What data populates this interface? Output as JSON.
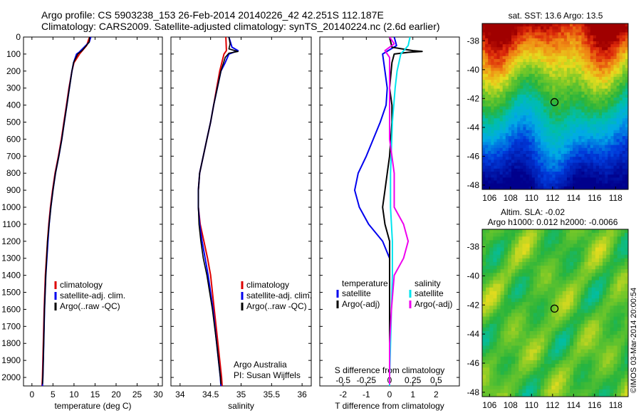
{
  "title_line1": "Argo profile: CS 5903238_153 26-Feb-2014 20140226_42 42.251S 112.187E",
  "title_line2": "Climatology: CARS2009. Satellite-adjusted climatology: synTS_20140224.nc (2.6d earlier)",
  "colors": {
    "climatology": "#dd0000",
    "satellite": "#0000ee",
    "argo": "#000000",
    "satellite_salinity": "#00e5ee",
    "argo_salinity": "#ee00ee"
  },
  "chart_data": [
    {
      "type": "line",
      "xlabel": "temperature (deg C)",
      "xlim": [
        -2,
        31
      ],
      "xticks": [
        "0",
        "5",
        "10",
        "15",
        "20",
        "25",
        "30"
      ],
      "xtick_values": [
        0,
        5,
        10,
        15,
        20,
        25,
        30
      ],
      "ylim": [
        0,
        2050
      ],
      "yticks": [
        "0",
        "100",
        "200",
        "300",
        "400",
        "500",
        "600",
        "700",
        "800",
        "900",
        "1000",
        "1100",
        "1200",
        "1300",
        "1400",
        "1500",
        "1600",
        "1700",
        "1800",
        "1900",
        "2000"
      ],
      "ytick_values": [
        0,
        100,
        200,
        300,
        400,
        500,
        600,
        700,
        800,
        900,
        1000,
        1100,
        1200,
        1300,
        1400,
        1500,
        1600,
        1700,
        1800,
        1900,
        2000
      ],
      "y_reversed": true,
      "legend": [
        "climatology",
        "satellite-adj. clim.",
        "Argo(..raw -QC)"
      ],
      "series": [
        {
          "name": "climatology",
          "depth": [
            0,
            50,
            100,
            150,
            200,
            300,
            400,
            500,
            600,
            700,
            800,
            900,
            1000,
            1100,
            1200,
            1400,
            1600,
            1800,
            2000,
            2050
          ],
          "values": [
            13.7,
            13.0,
            11.3,
            10.0,
            9.5,
            8.8,
            8.2,
            7.6,
            7.0,
            6.3,
            5.5,
            4.9,
            4.4,
            4.0,
            3.7,
            3.2,
            2.9,
            2.7,
            2.5,
            2.4
          ]
        },
        {
          "name": "satellite-adj. clim.",
          "depth": [
            0,
            30,
            60,
            90,
            100,
            150,
            200,
            300,
            400,
            500,
            600,
            700,
            800,
            900,
            1000,
            1100,
            1200,
            1400,
            1600,
            1800,
            2000,
            2050
          ],
          "values": [
            14.0,
            13.6,
            12.4,
            11.2,
            10.6,
            9.9,
            9.5,
            8.9,
            8.3,
            7.7,
            7.1,
            6.4,
            5.6,
            5.0,
            4.5,
            4.1,
            3.8,
            3.3,
            3.0,
            2.8,
            2.6,
            2.5
          ]
        },
        {
          "name": "Argo(..raw -QC)",
          "depth": [
            0,
            30,
            60,
            80,
            100,
            150,
            200,
            300,
            400,
            500,
            600,
            700,
            800,
            900,
            1000,
            1100,
            1200,
            1400,
            1600,
            1800,
            2000,
            2040
          ],
          "values": [
            13.7,
            13.6,
            12.6,
            11.9,
            10.9,
            9.9,
            9.5,
            8.9,
            8.3,
            7.7,
            7.1,
            6.4,
            5.6,
            5.0,
            4.5,
            4.1,
            3.7,
            3.3,
            3.0,
            2.8,
            2.6,
            2.5
          ]
        }
      ]
    },
    {
      "type": "line",
      "xlabel": "salinity",
      "xlim": [
        33.85,
        36.15
      ],
      "xticks": [
        "34",
        "34.5",
        "35",
        "35.5",
        "36"
      ],
      "xtick_values": [
        34,
        34.5,
        35,
        35.5,
        36
      ],
      "ylim": [
        0,
        2050
      ],
      "y_reversed": true,
      "legend": [
        "climatology",
        "satellite-adj. clim.",
        "Argo(..raw -QC)"
      ],
      "annotations": [
        "Argo Australia",
        "PI: Susan Wijffels"
      ],
      "series": [
        {
          "name": "climatology",
          "depth": [
            0,
            80,
            100,
            200,
            300,
            400,
            500,
            600,
            700,
            800,
            900,
            1000,
            1100,
            1200,
            1300,
            1400,
            1600,
            1800,
            2000,
            2050
          ],
          "values": [
            34.75,
            34.76,
            34.72,
            34.65,
            34.6,
            34.55,
            34.5,
            34.44,
            34.38,
            34.32,
            34.3,
            34.3,
            34.33,
            34.39,
            34.45,
            34.5,
            34.56,
            34.62,
            34.68,
            34.69
          ]
        },
        {
          "name": "satellite-adj. clim.",
          "depth": [
            0,
            60,
            80,
            100,
            150,
            200,
            300,
            400,
            500,
            600,
            700,
            800,
            900,
            1000,
            1100,
            1200,
            1300,
            1400,
            1600,
            1800,
            2000,
            2050
          ],
          "values": [
            34.8,
            34.85,
            34.95,
            34.8,
            34.74,
            34.67,
            34.61,
            34.55,
            34.5,
            34.44,
            34.38,
            34.32,
            34.3,
            34.3,
            34.32,
            34.36,
            34.41,
            34.46,
            34.54,
            34.6,
            34.66,
            34.67
          ]
        },
        {
          "name": "Argo(..raw -QC)",
          "depth": [
            0,
            40,
            70,
            85,
            95,
            120,
            200,
            300,
            400,
            500,
            600,
            700,
            800,
            900,
            1000,
            1100,
            1200,
            1300,
            1400,
            1600,
            1800,
            2000,
            2040
          ],
          "values": [
            34.8,
            34.82,
            34.8,
            34.95,
            34.8,
            34.74,
            34.67,
            34.61,
            34.55,
            34.5,
            34.44,
            34.38,
            34.32,
            34.3,
            34.3,
            34.31,
            34.34,
            34.38,
            34.44,
            34.53,
            34.6,
            34.66,
            34.67
          ]
        }
      ]
    },
    {
      "type": "line",
      "xlabel": "T difference from climatology",
      "xlabel_top": "S difference from climatology",
      "xlim": [
        -3,
        3
      ],
      "xticks": [
        "-2",
        "-1",
        "0",
        "1",
        "2"
      ],
      "xtick_values": [
        -2,
        -1,
        0,
        1,
        2
      ],
      "xticks_top": [
        "-0.5",
        "-0.25",
        "0",
        "0.25",
        "0.5"
      ],
      "xticks_top_values": [
        -0.5,
        -0.25,
        0,
        0.25,
        0.5
      ],
      "ylim": [
        0,
        2050
      ],
      "y_reversed": true,
      "legend_temperature": {
        "title": "temperature",
        "entries": [
          "satellite",
          "Argo(-adj)"
        ]
      },
      "legend_salinity": {
        "title": "salinity",
        "entries": [
          "satellite",
          "Argo(-adj)"
        ]
      },
      "series": [
        {
          "name": "satellite",
          "depth": [
            0,
            50,
            100,
            200,
            300,
            400,
            500,
            600,
            700,
            800,
            900,
            1000,
            1100,
            1200,
            1300,
            1400,
            1600,
            1800,
            2000,
            2050
          ],
          "values": [
            0.2,
            0.3,
            -0.3,
            -0.2,
            -0.1,
            -0.15,
            -0.4,
            -0.7,
            -1.0,
            -1.35,
            -1.5,
            -1.3,
            -0.9,
            -0.3,
            0.0,
            0.0,
            0.0,
            0.0,
            0.0,
            0.0
          ]
        },
        {
          "name": "Argo(-adj)",
          "depth": [
            0,
            60,
            80,
            85,
            90,
            100,
            150,
            300,
            400,
            500,
            700,
            800,
            900,
            1000,
            1100,
            1200,
            1300,
            1400,
            1600,
            1800,
            2000,
            2040
          ],
          "values": [
            0.0,
            0.1,
            1.0,
            1.4,
            0.8,
            0.2,
            0.1,
            0.0,
            0.1,
            0.1,
            0.0,
            -0.1,
            -0.2,
            -0.3,
            -0.2,
            0.0,
            0.0,
            0.0,
            0.0,
            0.0,
            0.0,
            0.0
          ]
        },
        {
          "name": "satellite",
          "depth": [
            0,
            50,
            100,
            150,
            200,
            300,
            500,
            800,
            1000,
            1200,
            1400,
            1600,
            1800,
            2000,
            2050
          ],
          "values": [
            0.22,
            0.2,
            0.12,
            0.1,
            0.08,
            0.06,
            0.03,
            0.01,
            0.01,
            0.03,
            0.03,
            0.02,
            0.01,
            0.0,
            0.0
          ]
        },
        {
          "name": "Argo(-adj)",
          "depth": [
            0,
            40,
            80,
            120,
            200,
            400,
            600,
            800,
            1000,
            1100,
            1200,
            1300,
            1400,
            1600,
            1800,
            2000,
            2040
          ],
          "values": [
            0.0,
            0.05,
            -0.05,
            0.0,
            0.0,
            0.0,
            0.0,
            0.05,
            0.05,
            0.15,
            0.2,
            0.15,
            0.05,
            0.02,
            0.0,
            0.0,
            0.0
          ]
        }
      ]
    },
    {
      "type": "heatmap",
      "title": "sat. SST: 13.6 Argo: 13.5",
      "xlim": [
        105.3,
        119.2
      ],
      "ylim": [
        -48.3,
        -36.8
      ],
      "xticks": [
        "106",
        "108",
        "110",
        "112",
        "114",
        "116",
        "118"
      ],
      "xtick_values": [
        106,
        108,
        110,
        112,
        114,
        116,
        118
      ],
      "yticks": [
        "-38",
        "-40",
        "-42",
        "-44",
        "-46",
        "-48"
      ],
      "ytick_values": [
        -38,
        -40,
        -42,
        -44,
        -46,
        -48
      ],
      "marker": [
        112.187,
        -42.251
      ]
    },
    {
      "type": "heatmap",
      "title": "Altim. SLA: -0.02",
      "subtitle": "Argo h1000: 0.012 h2000: -0.0066",
      "xlim": [
        105.3,
        119.2
      ],
      "ylim": [
        -48.3,
        -36.8
      ],
      "xticks": [
        "106",
        "108",
        "110",
        "112",
        "114",
        "116",
        "118"
      ],
      "xtick_values": [
        106,
        108,
        110,
        112,
        114,
        116,
        118
      ],
      "yticks": [
        "-38",
        "-40",
        "-42",
        "-44",
        "-46",
        "-48"
      ],
      "ytick_values": [
        -38,
        -40,
        -42,
        -44,
        -46,
        -48
      ],
      "marker": [
        112.187,
        -42.251
      ]
    }
  ],
  "side_label": "©IMOS 03-Mar-2014 20:00:54"
}
